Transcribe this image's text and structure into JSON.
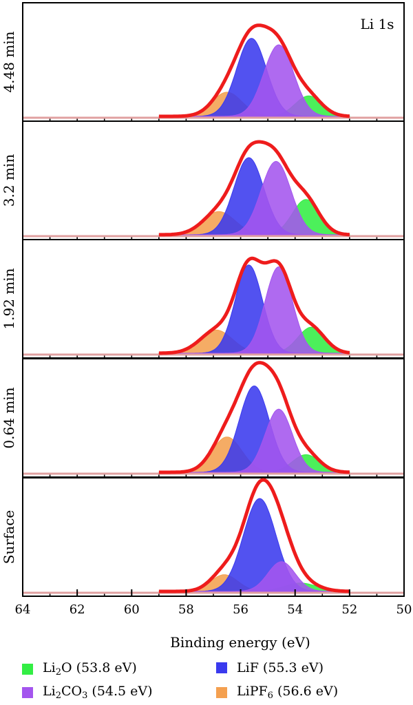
{
  "chart_data": {
    "type": "area",
    "title": "",
    "corner_label": "Li 1s",
    "xlabel": "Binding energy (eV)",
    "ylabel": "",
    "xlim": [
      64,
      50
    ],
    "x_reversed": true,
    "x_ticks": [
      64,
      62,
      60,
      58,
      56,
      54,
      52,
      50
    ],
    "x_tick_labels": [
      "64",
      "62",
      "60",
      "58",
      "56",
      "54",
      "52",
      "50"
    ],
    "grid": false,
    "legend_position": "bottom",
    "series_colors": {
      "envelope": "#ee1c1c",
      "Li2O": "#33ee44",
      "Li2CO3": "#a455ee",
      "LiF": "#3a3aee",
      "LiPF6": "#f4a050",
      "baseline": "#e0a0a0"
    },
    "legend": [
      {
        "key": "Li2O",
        "base": "Li",
        "sub": "2",
        "rest": "O (53.8 eV)"
      },
      {
        "key": "LiF",
        "base": "LiF (55.3 eV)",
        "sub": "",
        "rest": ""
      },
      {
        "key": "Li2CO3",
        "base": "Li",
        "sub": "2",
        "rest": "CO",
        "sub2": "3",
        "rest2": " (54.5 eV)"
      },
      {
        "key": "LiPF6",
        "base": "LiPF",
        "sub": "6",
        "rest": " (56.6 eV)"
      }
    ],
    "panels": [
      {
        "label": "4.48 min",
        "peaks": [
          {
            "name": "Li2O",
            "center": 53.5,
            "height": 0.22,
            "sigma": 0.5
          },
          {
            "name": "Li2CO3",
            "center": 54.6,
            "height": 0.77,
            "sigma": 0.55
          },
          {
            "name": "LiF",
            "center": 55.6,
            "height": 0.84,
            "sigma": 0.55
          },
          {
            "name": "LiPF6",
            "center": 56.5,
            "height": 0.26,
            "sigma": 0.55
          }
        ],
        "envelope_peak": 0.98
      },
      {
        "label": "3.2 min",
        "peaks": [
          {
            "name": "Li2O",
            "center": 53.6,
            "height": 0.38,
            "sigma": 0.5
          },
          {
            "name": "Li2CO3",
            "center": 54.7,
            "height": 0.79,
            "sigma": 0.55
          },
          {
            "name": "LiF",
            "center": 55.7,
            "height": 0.83,
            "sigma": 0.55
          },
          {
            "name": "LiPF6",
            "center": 56.8,
            "height": 0.25,
            "sigma": 0.6
          }
        ],
        "envelope_peak": 1.0
      },
      {
        "label": "1.92 min",
        "peaks": [
          {
            "name": "Li2O",
            "center": 53.4,
            "height": 0.28,
            "sigma": 0.5
          },
          {
            "name": "Li2CO3",
            "center": 54.6,
            "height": 0.93,
            "sigma": 0.5
          },
          {
            "name": "LiF",
            "center": 55.7,
            "height": 0.95,
            "sigma": 0.5
          },
          {
            "name": "LiPF6",
            "center": 56.9,
            "height": 0.25,
            "sigma": 0.6
          }
        ],
        "envelope_peak": 1.02
      },
      {
        "label": "0.64 min",
        "peaks": [
          {
            "name": "Li2O",
            "center": 53.6,
            "height": 0.19,
            "sigma": 0.5
          },
          {
            "name": "Li2CO3",
            "center": 54.6,
            "height": 0.68,
            "sigma": 0.5
          },
          {
            "name": "LiF",
            "center": 55.5,
            "height": 0.93,
            "sigma": 0.55
          },
          {
            "name": "LiPF6",
            "center": 56.5,
            "height": 0.38,
            "sigma": 0.55
          }
        ],
        "envelope_peak": 1.18
      },
      {
        "label": "Surface",
        "peaks": [
          {
            "name": "Li2O",
            "center": 53.8,
            "height": 0.09,
            "sigma": 0.6
          },
          {
            "name": "Li2CO3",
            "center": 54.5,
            "height": 0.32,
            "sigma": 0.5
          },
          {
            "name": "LiF",
            "center": 55.3,
            "height": 1.0,
            "sigma": 0.6
          },
          {
            "name": "LiPF6",
            "center": 56.6,
            "height": 0.18,
            "sigma": 0.5
          }
        ],
        "envelope_peak": 1.2
      }
    ]
  }
}
